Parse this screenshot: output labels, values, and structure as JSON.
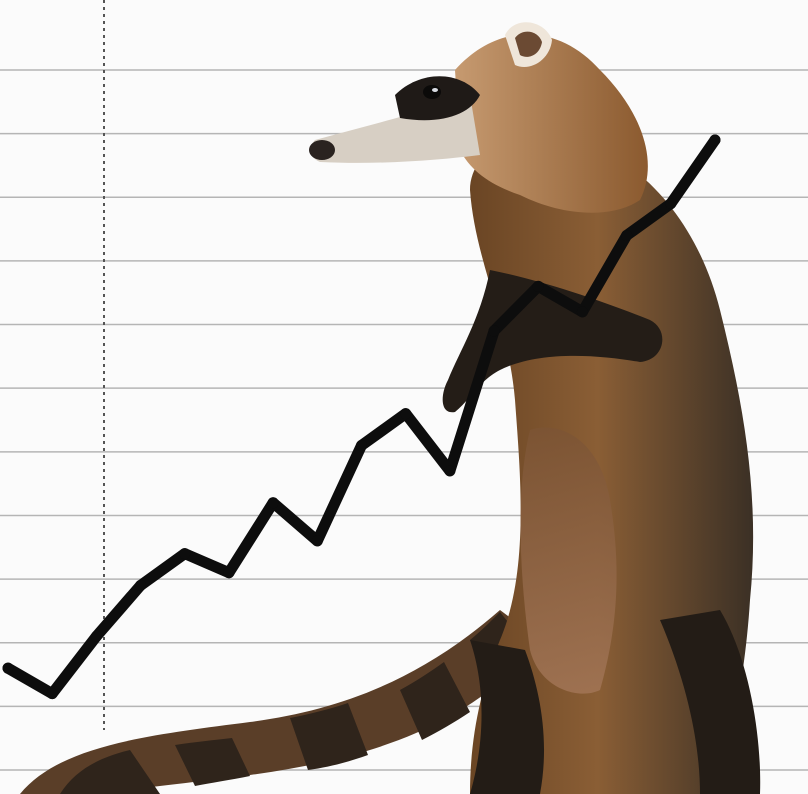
{
  "image": {
    "subject": "coati-standing",
    "colors": {
      "background": "#fbfbfb",
      "gridline": "#b5b5b5",
      "axis": "#555555",
      "trend_line": "#0d0d0d",
      "fur_brown": "#7a4f2b",
      "fur_light": "#b98a5a",
      "fur_dark": "#2a211b",
      "muzzle": "#d9d2c8",
      "tail_band_dark": "#3a2a1e",
      "tail_band_light": "#8a6544"
    }
  },
  "chart_data": {
    "type": "line",
    "series": [
      {
        "values": [
          1.6,
          1.2,
          2.1,
          2.9,
          3.4,
          3.1,
          4.2,
          3.6,
          5.1,
          5.6,
          4.7,
          6.9,
          7.6,
          7.2,
          8.4,
          8.9,
          9.9
        ]
      }
    ],
    "x": [
      0,
      1,
      2,
      3,
      4,
      5,
      6,
      7,
      8,
      9,
      10,
      11,
      12,
      13,
      14,
      15,
      16
    ],
    "ylim": [
      0,
      11
    ],
    "grid": true,
    "legend": "none"
  }
}
